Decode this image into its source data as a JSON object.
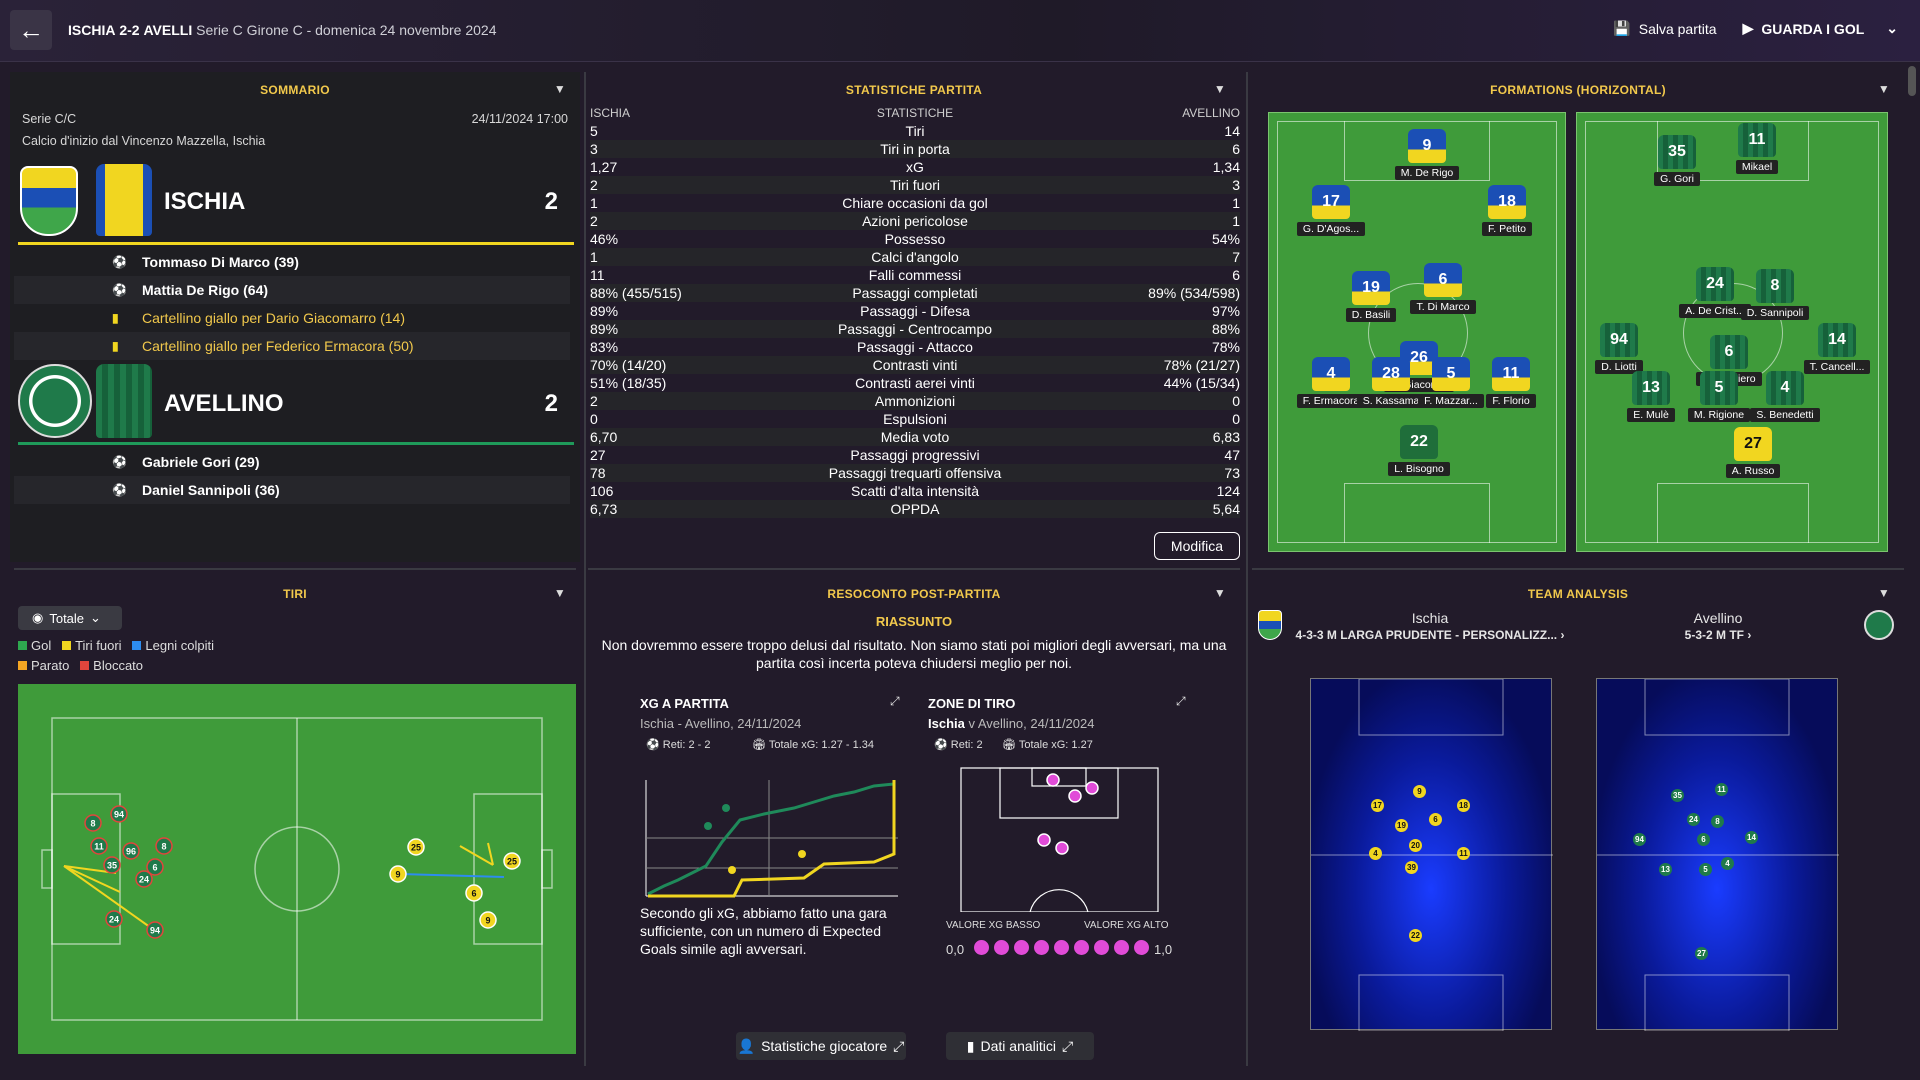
{
  "topbar": {
    "home": "ISCHIA",
    "score": "2-2",
    "away": "AVELLI",
    "subtitle": "Serie C Girone C - domenica 24 novembre 2024",
    "save_label": "Salva partita",
    "goals_label": "GUARDA I GOL"
  },
  "summary": {
    "title": "SOMMARIO",
    "competition": "Serie C/C",
    "datetime": "24/11/2024 17:00",
    "kickoff": "Calcio d'inizio dal Vincenzo Mazzella, Ischia",
    "home": {
      "name": "ISCHIA",
      "score": "2",
      "color": "#f1d620",
      "events": [
        {
          "type": "goal",
          "text": "Tommaso Di Marco (39)"
        },
        {
          "type": "goal",
          "text": "Mattia De Rigo (64)"
        },
        {
          "type": "card",
          "text": "Cartellino giallo per Dario Giacomarro (14)"
        },
        {
          "type": "card",
          "text": "Cartellino giallo per Federico Ermacora (50)"
        }
      ]
    },
    "away": {
      "name": "AVELLINO",
      "score": "2",
      "color": "#1f9a5a",
      "events": [
        {
          "type": "goal",
          "text": "Gabriele Gori (29)"
        },
        {
          "type": "goal",
          "text": "Daniel Sannipoli (36)"
        }
      ]
    }
  },
  "stats": {
    "title": "STATISTICHE PARTITA",
    "head_left": "ISCHIA",
    "head_mid": "STATISTICHE",
    "head_right": "AVELLINO",
    "rows": [
      {
        "l": "5",
        "c": "Tiri",
        "r": "14"
      },
      {
        "l": "3",
        "c": "Tiri in porta",
        "r": "6"
      },
      {
        "l": "1,27",
        "c": "xG",
        "r": "1,34"
      },
      {
        "l": "2",
        "c": "Tiri fuori",
        "r": "3"
      },
      {
        "l": "1",
        "c": "Chiare occasioni da gol",
        "r": "1"
      },
      {
        "l": "2",
        "c": "Azioni pericolose",
        "r": "1"
      },
      {
        "l": "46%",
        "c": "Possesso",
        "r": "54%"
      },
      {
        "l": "1",
        "c": "Calci d'angolo",
        "r": "7"
      },
      {
        "l": "11",
        "c": "Falli commessi",
        "r": "6"
      },
      {
        "l": "88% (455/515)",
        "c": "Passaggi completati",
        "r": "89% (534/598)"
      },
      {
        "l": "89%",
        "c": "Passaggi - Difesa",
        "r": "97%"
      },
      {
        "l": "89%",
        "c": "Passaggi - Centrocampo",
        "r": "88%"
      },
      {
        "l": "83%",
        "c": "Passaggi - Attacco",
        "r": "78%"
      },
      {
        "l": "70% (14/20)",
        "c": "Contrasti vinti",
        "r": "78% (21/27)"
      },
      {
        "l": "51% (18/35)",
        "c": "Contrasti aerei vinti",
        "r": "44% (15/34)"
      },
      {
        "l": "2",
        "c": "Ammonizioni",
        "r": "0"
      },
      {
        "l": "0",
        "c": "Espulsioni",
        "r": "0"
      },
      {
        "l": "6,70",
        "c": "Media voto",
        "r": "6,83"
      },
      {
        "l": "27",
        "c": "Passaggi progressivi",
        "r": "47"
      },
      {
        "l": "78",
        "c": "Passaggi trequarti offensiva",
        "r": "73"
      },
      {
        "l": "106",
        "c": "Scatti d'alta intensità",
        "r": "124"
      },
      {
        "l": "6,73",
        "c": "OPPDA",
        "r": "5,64"
      }
    ],
    "edit_label": "Modifica"
  },
  "formations": {
    "title": "FORMATIONS (HORIZONTAL)",
    "home": [
      {
        "n": "9",
        "name": "M. De Rigo"
      },
      {
        "n": "17",
        "name": "G. D'Agos..."
      },
      {
        "n": "18",
        "name": "F. Petito"
      },
      {
        "n": "19",
        "name": "D. Basili"
      },
      {
        "n": "6",
        "name": "T. Di Marco"
      },
      {
        "n": "26",
        "name": "D. Giacom..."
      },
      {
        "n": "4",
        "name": "F. Ermacora"
      },
      {
        "n": "28",
        "name": "S. Kassama"
      },
      {
        "n": "5",
        "name": "F. Mazzar..."
      },
      {
        "n": "11",
        "name": "F. Florio"
      },
      {
        "n": "22",
        "name": "L. Bisogno"
      }
    ],
    "away": [
      {
        "n": "35",
        "name": "G. Gori"
      },
      {
        "n": "11",
        "name": "Mikael"
      },
      {
        "n": "24",
        "name": "A. De Crist..."
      },
      {
        "n": "8",
        "name": "D. Sannipoli"
      },
      {
        "n": "94",
        "name": "D. Liotti"
      },
      {
        "n": "6",
        "name": "L. Palmiero"
      },
      {
        "n": "14",
        "name": "T. Cancell..."
      },
      {
        "n": "13",
        "name": "E. Mulè"
      },
      {
        "n": "5",
        "name": "M. Rigione"
      },
      {
        "n": "4",
        "name": "S. Benedetti"
      },
      {
        "n": "27",
        "name": "A. Russo"
      }
    ]
  },
  "shots": {
    "title": "TIRI",
    "filter": "Totale",
    "legend": [
      {
        "label": "Gol",
        "color": "#2ea84f"
      },
      {
        "label": "Tiri fuori",
        "color": "#f1d620"
      },
      {
        "label": "Legni colpiti",
        "color": "#2d8cf0"
      },
      {
        "label": "Parato",
        "color": "#f5a623"
      },
      {
        "label": "Bloccato",
        "color": "#e2453c"
      }
    ],
    "home_markers": [
      "25",
      "25",
      "9",
      "6",
      "9"
    ],
    "away_markers": [
      "8",
      "94",
      "11",
      "96",
      "8",
      "35",
      "24",
      "6",
      "24",
      "94"
    ]
  },
  "report": {
    "title": "RESOCONTO POST-PARTITA",
    "heading": "RIASSUNTO",
    "text": "Non dovremmo essere troppo delusi dal risultato. Non siamo stati poi migliori degli avversari, ma una partita così incerta poteva chiudersi meglio per noi.",
    "xg": {
      "title": "XG A PARTITA",
      "sub": "Ischia - Avellino, 24/11/2024",
      "goals": "Reti: 2 - 2",
      "total": "Totale xG: 1.27 - 1.34",
      "note": "Secondo gli xG, abbiamo fatto una gara sufficiente, con un numero di Expected Goals simile agli avversari."
    },
    "zones": {
      "title": "ZONE DI TIRO",
      "team": "Ischia",
      "sub": " v Avellino, 24/11/2024",
      "goals": "Reti: 2",
      "total": "Totale xG: 1.27",
      "low": "VALORE XG BASSO",
      "high": "VALORE XG ALTO",
      "min": "0,0",
      "max": "1,0"
    }
  },
  "analysis": {
    "title": "TEAM ANALYSIS",
    "home": {
      "name": "Ischia",
      "tactic": "4-3-3 M LARGA PRUDENTE - PERSONALIZZ... ›"
    },
    "away": {
      "name": "Avellino",
      "tactic": "5-3-2 M TF ›"
    },
    "home_heat": [
      "17",
      "9",
      "18",
      "19",
      "6",
      "4",
      "20",
      "11",
      "39",
      "22"
    ],
    "away_heat": [
      "35",
      "11",
      "24",
      "8",
      "94",
      "6",
      "14",
      "13",
      "5",
      "4",
      "27"
    ]
  },
  "bottom": {
    "player_stats": "Statistiche giocatore",
    "analytics": "Dati analitici"
  }
}
